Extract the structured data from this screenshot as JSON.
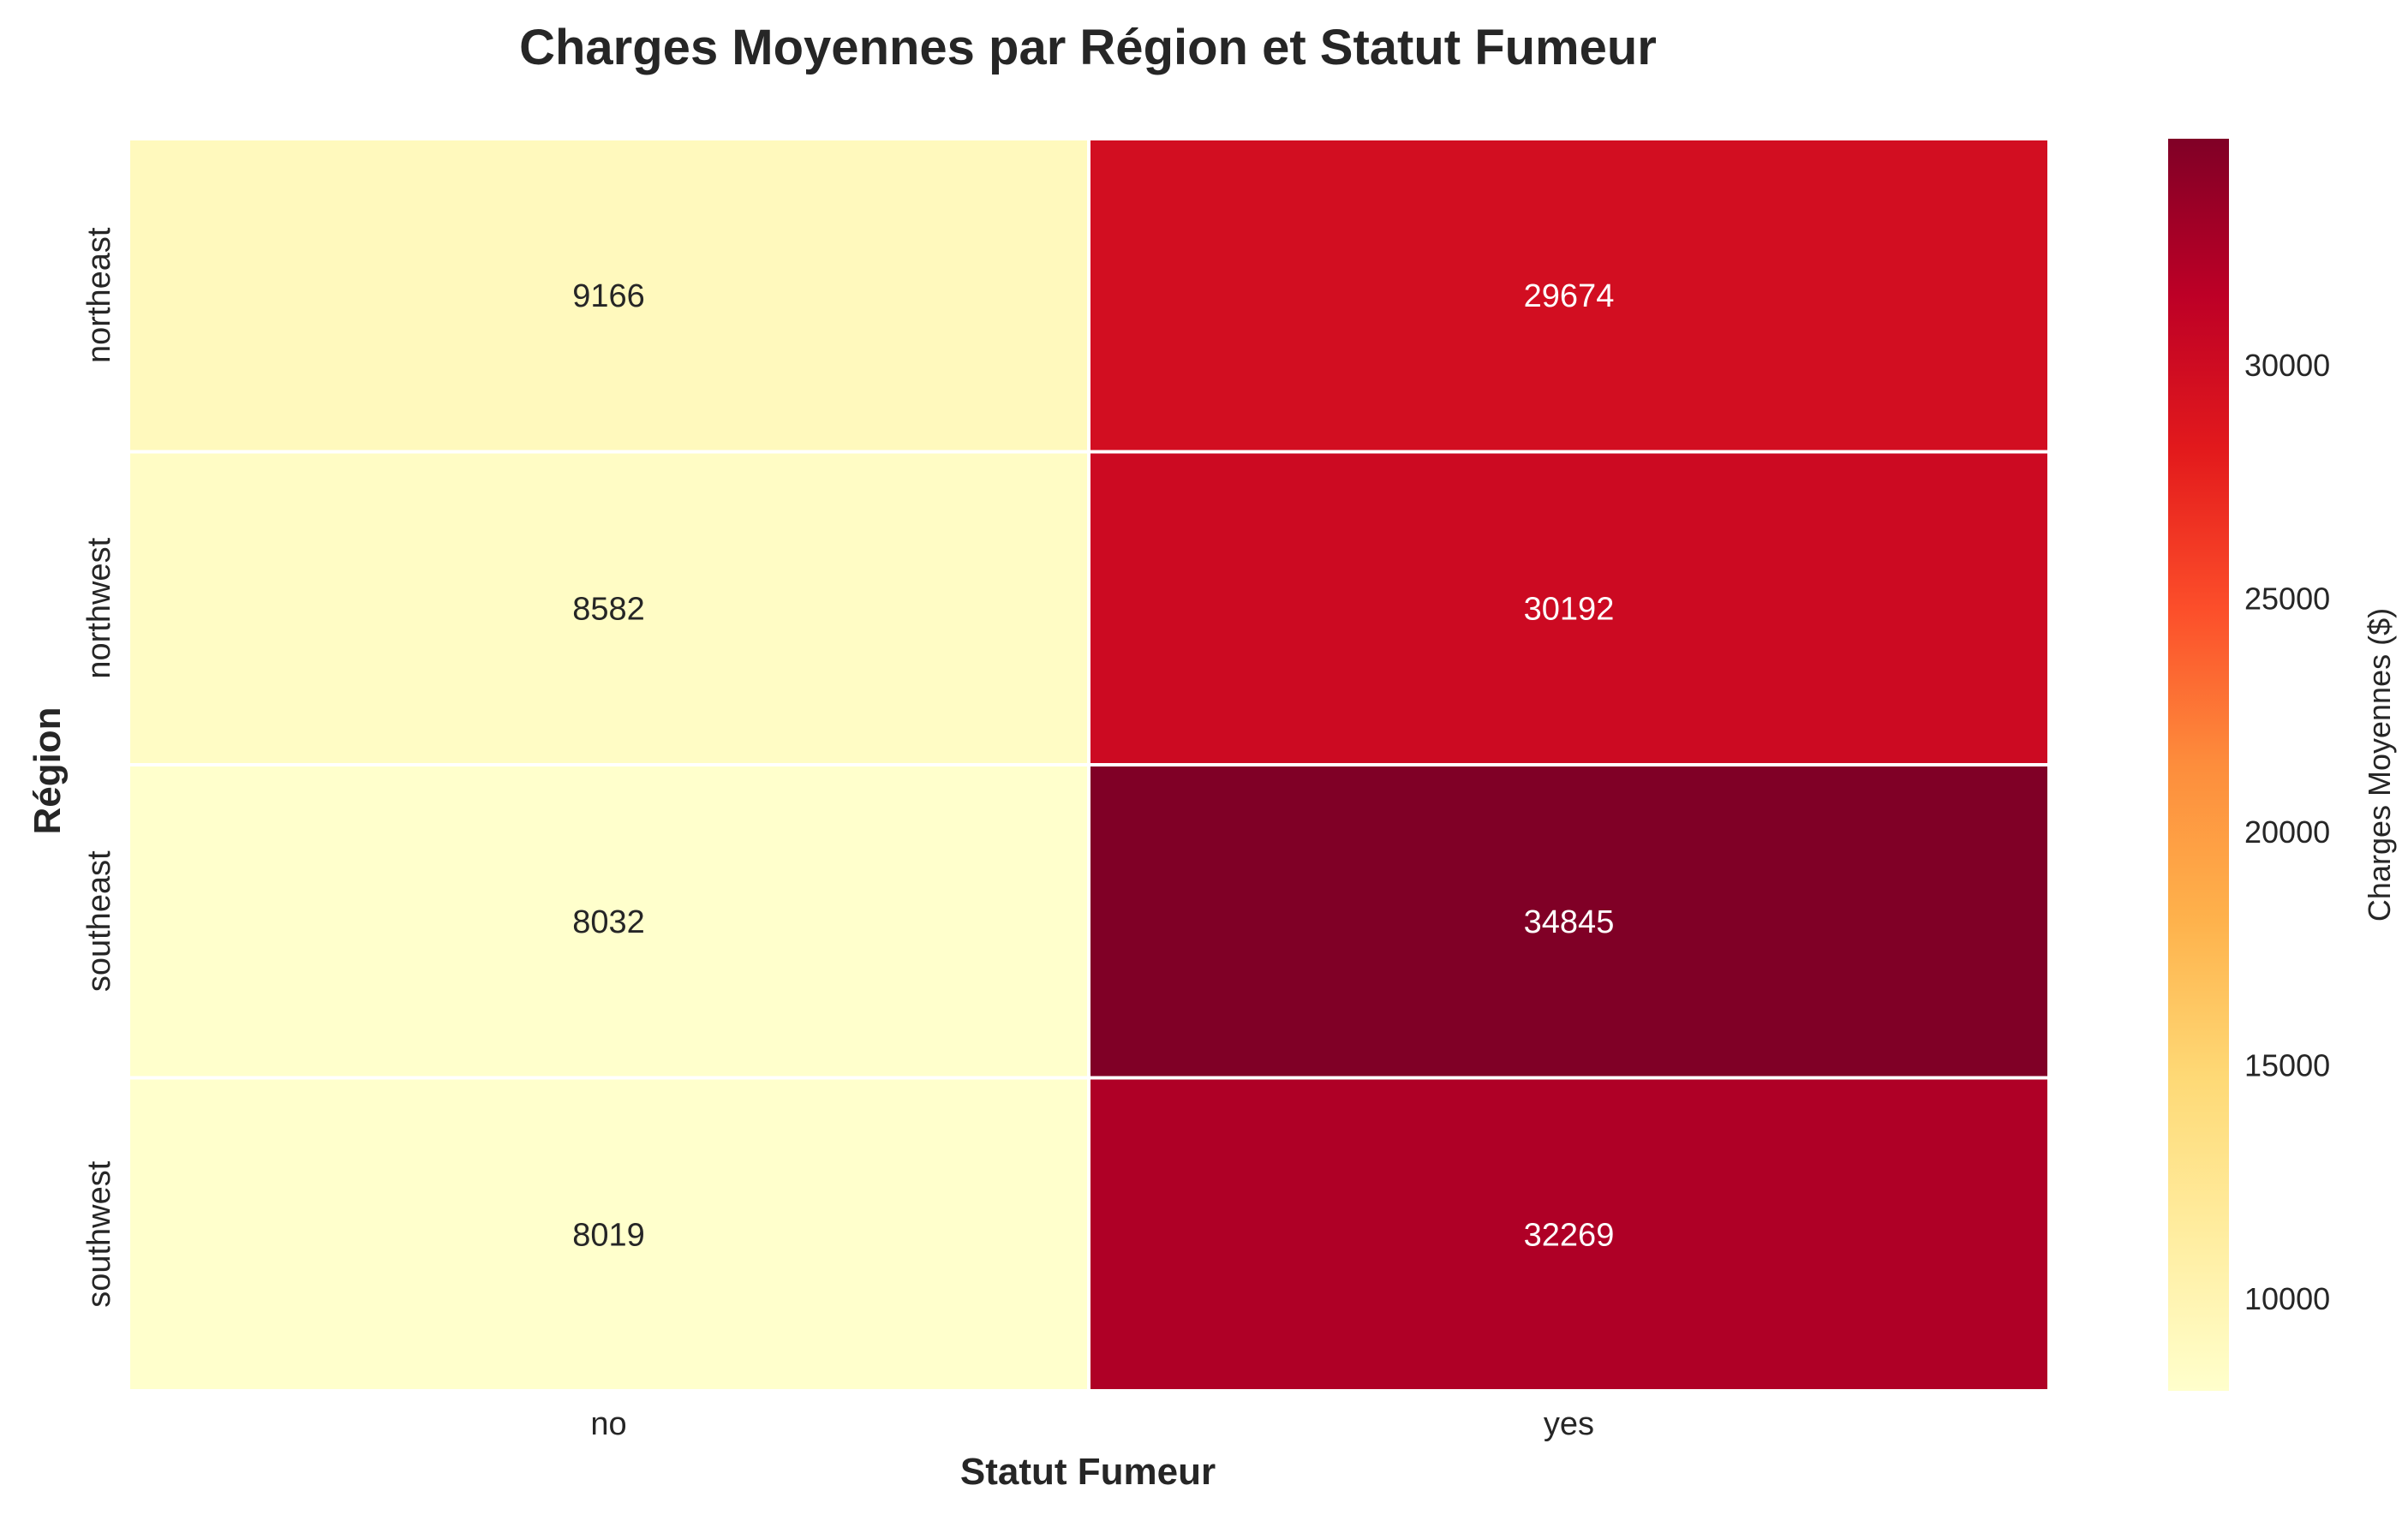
{
  "chart_data": {
    "type": "heatmap",
    "title": "Charges Moyennes par Région et Statut Fumeur",
    "xlabel": "Statut Fumeur",
    "ylabel": "Région",
    "x_categories": [
      "no",
      "yes"
    ],
    "y_categories": [
      "northeast",
      "northwest",
      "southeast",
      "southwest"
    ],
    "values": [
      [
        9166,
        29674
      ],
      [
        8582,
        30192
      ],
      [
        8032,
        34845
      ],
      [
        8019,
        32269
      ]
    ],
    "annotations": true,
    "colormap": "YlOrRd",
    "colorbar": {
      "label": "Charges Moyennes ($)",
      "range": [
        8019,
        34845
      ],
      "ticks": [
        10000,
        15000,
        20000,
        25000,
        30000
      ]
    },
    "grid": false,
    "cell_separator_color": "#ffffff",
    "colors": {
      "annotation_light": "#262626",
      "annotation_dark": "#ffffff",
      "title": "#262626",
      "label": "#262626",
      "tick": "#262626"
    }
  }
}
